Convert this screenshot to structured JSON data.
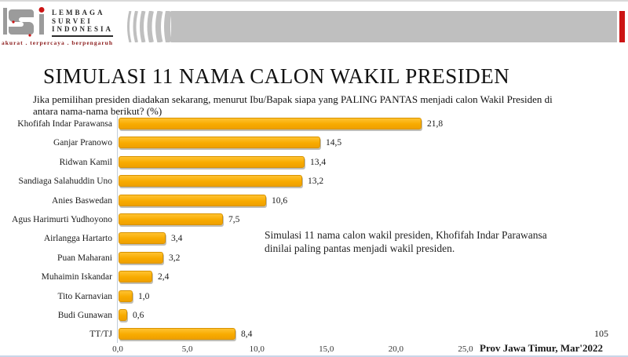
{
  "header": {
    "logo": {
      "org_lines": [
        "LEMBAGA",
        "SURVEI",
        "INDONESIA"
      ],
      "tagline": "akurat . terpercaya . berpengaruh",
      "mark_color": "#9b9b9b",
      "dot_color": "#cc1414"
    },
    "banner_color": "#bfbfbf",
    "accent_red": "#cc1414"
  },
  "title": "SIMULASI 11 NAMA CALON WAKIL PRESIDEN",
  "question": "Jika pemilihan presiden diadakan sekarang, menurut Ibu/Bapak siapa yang PALING PANTAS menjadi calon Wakil Presiden di antara nama-nama berikut? (%)",
  "chart_data": {
    "type": "bar",
    "orientation": "horizontal",
    "categories": [
      "Khofifah Indar Parawansa",
      "Ganjar Pranowo",
      "Ridwan Kamil",
      "Sandiaga Salahuddin Uno",
      "Anies Baswedan",
      "Agus Harimurti Yudhoyono",
      "Airlangga Hartarto",
      "Puan Maharani",
      "Muhaimin Iskandar",
      "Tito Karnavian",
      "Budi Gunawan",
      "TT/TJ"
    ],
    "values": [
      21.8,
      14.5,
      13.4,
      13.2,
      10.6,
      7.5,
      3.4,
      3.2,
      2.4,
      1.0,
      0.6,
      8.4
    ],
    "value_labels": [
      "21,8",
      "14,5",
      "13,4",
      "13,2",
      "10,6",
      "7,5",
      "3,4",
      "3,2",
      "2,4",
      "1,0",
      "0,6",
      "8,4"
    ],
    "xlim": [
      0,
      25
    ],
    "x_tick_values": [
      0,
      5,
      10,
      15,
      20,
      25
    ],
    "x_tick_labels": [
      "0,0",
      "5,0",
      "10,0",
      "15,0",
      "20,0",
      "25,0"
    ],
    "bar_color": "#f8ab00",
    "grid": false,
    "legend": false
  },
  "annotation": "Simulasi 11 nama calon wakil presiden, Khofifah Indar Parawansa dinilai paling pantas menjadi wakil presiden.",
  "footer": {
    "page_number": "105",
    "source": "Prov Jawa Timur, Mar'2022"
  }
}
